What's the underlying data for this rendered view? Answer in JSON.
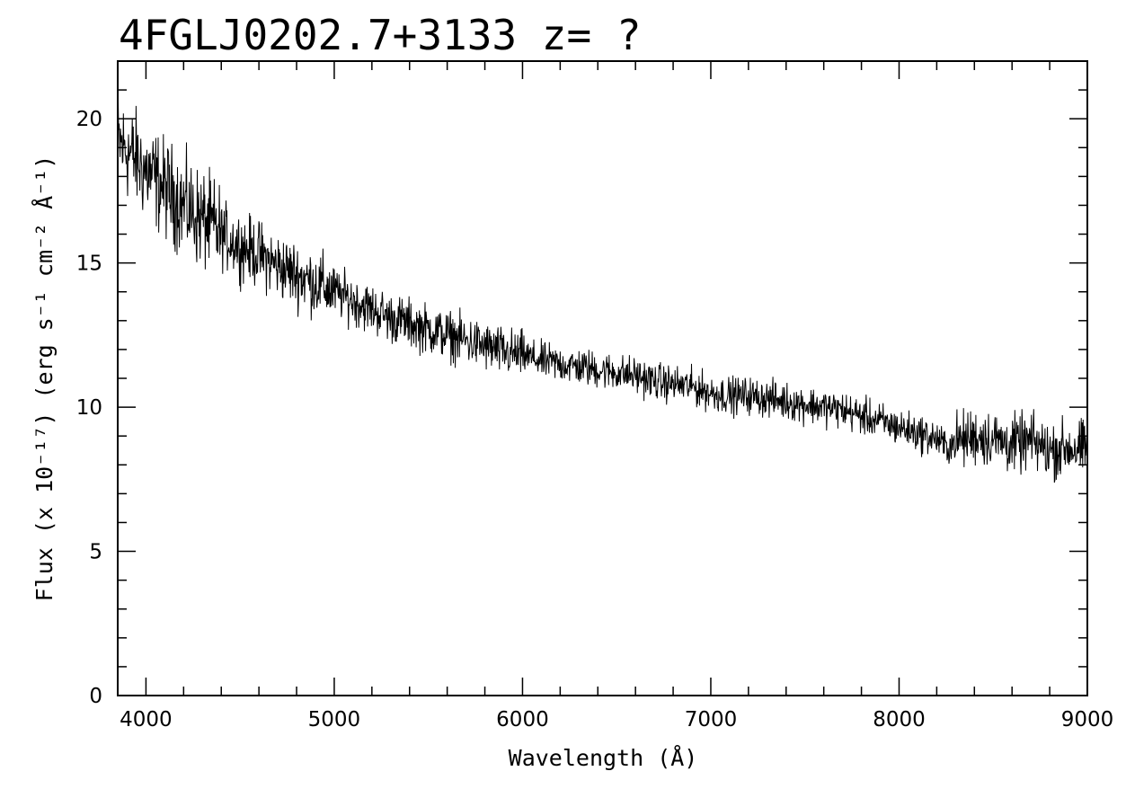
{
  "chart_data": {
    "type": "line",
    "title": "4FGLJ0202.7+3133 z= ?",
    "xlabel": "Wavelength (Å)",
    "ylabel": "Flux (x 10⁻¹⁷) (erg s⁻¹ cm⁻² Å⁻¹)",
    "xlim": [
      3850,
      9000
    ],
    "ylim": [
      0,
      22
    ],
    "x_ticks": [
      4000,
      5000,
      6000,
      7000,
      8000,
      9000
    ],
    "y_ticks": [
      0,
      5,
      10,
      15,
      20
    ],
    "grid": false,
    "legend": "none",
    "line_color": "#000000",
    "series": [
      {
        "x": [
          3850,
          3900,
          4000,
          4100,
          4200,
          4300,
          4400,
          4500,
          4600,
          4700,
          4800,
          4900,
          5000,
          5100,
          5200,
          5300,
          5400,
          5500,
          5600,
          5700,
          5800,
          5900,
          6000,
          6100,
          6200,
          6300,
          6400,
          6500,
          6600,
          6700,
          6800,
          6900,
          7000,
          7100,
          7200,
          7300,
          7400,
          7500,
          7600,
          7700,
          7800,
          7900,
          8000,
          8100,
          8200,
          8250,
          8300,
          8400,
          8500,
          8600,
          8700,
          8800,
          8900,
          9000
        ],
        "y": [
          19.2,
          18.9,
          18.2,
          17.6,
          17.0,
          16.5,
          16.0,
          15.6,
          15.3,
          14.9,
          14.6,
          14.3,
          14.0,
          13.7,
          13.4,
          13.1,
          12.9,
          12.7,
          12.5,
          12.3,
          12.1,
          11.9,
          11.8,
          11.6,
          11.5,
          11.4,
          11.3,
          11.2,
          11.1,
          10.9,
          10.8,
          10.7,
          10.5,
          10.4,
          10.4,
          10.3,
          10.2,
          10.1,
          10.0,
          9.9,
          9.7,
          9.5,
          9.3,
          9.1,
          8.9,
          8.6,
          8.8,
          9.0,
          8.9,
          8.7,
          8.8,
          8.5,
          8.6,
          8.5
        ]
      }
    ]
  }
}
